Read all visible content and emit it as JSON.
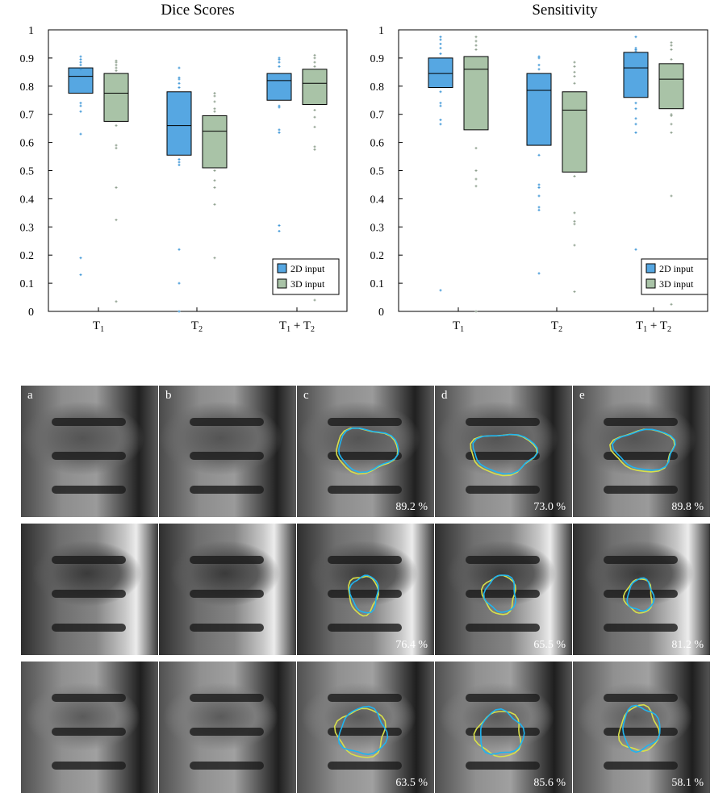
{
  "chart_data": [
    {
      "type": "box",
      "title": "Dice Scores",
      "categories": [
        "T1",
        "T2",
        "T1 + T2"
      ],
      "ylim": [
        0,
        1
      ],
      "yticks": [
        "0",
        "0.1",
        "0.2",
        "0.3",
        "0.4",
        "0.5",
        "0.6",
        "0.7",
        "0.8",
        "0.9",
        "1"
      ],
      "legend_position": "bottom-right",
      "series": [
        {
          "name": "2D input",
          "color": "#56a7e2",
          "boxes": [
            {
              "q1": 0.775,
              "median": 0.835,
              "q3": 0.865,
              "outliers": [
                0.905,
                0.895,
                0.885,
                0.875,
                0.86,
                0.74,
                0.73,
                0.71,
                0.63,
                0.19,
                0.13
              ]
            },
            {
              "q1": 0.555,
              "median": 0.66,
              "q3": 0.78,
              "outliers": [
                0.865,
                0.83,
                0.825,
                0.81,
                0.795,
                0.54,
                0.53,
                0.52,
                0.22,
                0.1,
                0.0
              ]
            },
            {
              "q1": 0.75,
              "median": 0.82,
              "q3": 0.845,
              "outliers": [
                0.9,
                0.895,
                0.885,
                0.87,
                0.73,
                0.725,
                0.645,
                0.635,
                0.305,
                0.285
              ]
            }
          ]
        },
        {
          "name": "3D input",
          "color": "#a9c3a7",
          "boxes": [
            {
              "q1": 0.675,
              "median": 0.775,
              "q3": 0.845,
              "outliers": [
                0.89,
                0.885,
                0.875,
                0.865,
                0.855,
                0.66,
                0.59,
                0.58,
                0.44,
                0.325,
                0.035
              ]
            },
            {
              "q1": 0.51,
              "median": 0.64,
              "q3": 0.695,
              "outliers": [
                0.775,
                0.765,
                0.745,
                0.72,
                0.71,
                0.5,
                0.465,
                0.44,
                0.38,
                0.19
              ]
            },
            {
              "q1": 0.735,
              "median": 0.81,
              "q3": 0.86,
              "outliers": [
                0.91,
                0.9,
                0.885,
                0.87,
                0.715,
                0.69,
                0.655,
                0.585,
                0.575,
                0.04
              ]
            }
          ]
        }
      ]
    },
    {
      "type": "box",
      "title": "Sensitivity",
      "categories": [
        "T1",
        "T2",
        "T1 + T2"
      ],
      "ylim": [
        0,
        1
      ],
      "yticks": [
        "0",
        "0.1",
        "0.2",
        "0.3",
        "0.4",
        "0.5",
        "0.6",
        "0.7",
        "0.8",
        "0.9",
        "1"
      ],
      "legend_position": "bottom-right",
      "series": [
        {
          "name": "2D input",
          "color": "#56a7e2",
          "boxes": [
            {
              "q1": 0.795,
              "median": 0.845,
              "q3": 0.9,
              "outliers": [
                0.975,
                0.965,
                0.95,
                0.935,
                0.915,
                0.78,
                0.74,
                0.73,
                0.68,
                0.665,
                0.075
              ]
            },
            {
              "q1": 0.59,
              "median": 0.785,
              "q3": 0.845,
              "outliers": [
                0.905,
                0.9,
                0.875,
                0.86,
                0.555,
                0.45,
                0.44,
                0.41,
                0.37,
                0.36,
                0.135
              ]
            },
            {
              "q1": 0.76,
              "median": 0.865,
              "q3": 0.92,
              "outliers": [
                0.975,
                0.935,
                0.93,
                0.925,
                0.74,
                0.72,
                0.685,
                0.665,
                0.635,
                0.22
              ]
            }
          ]
        },
        {
          "name": "3D input",
          "color": "#a9c3a7",
          "boxes": [
            {
              "q1": 0.645,
              "median": 0.86,
              "q3": 0.905,
              "outliers": [
                0.975,
                0.96,
                0.945,
                0.93,
                0.58,
                0.5,
                0.47,
                0.445,
                0.0
              ]
            },
            {
              "q1": 0.495,
              "median": 0.715,
              "q3": 0.78,
              "outliers": [
                0.885,
                0.87,
                0.85,
                0.835,
                0.81,
                0.48,
                0.35,
                0.32,
                0.31,
                0.235,
                0.07
              ]
            },
            {
              "q1": 0.72,
              "median": 0.825,
              "q3": 0.88,
              "outliers": [
                0.955,
                0.945,
                0.93,
                0.895,
                0.7,
                0.695,
                0.665,
                0.635,
                0.41,
                0.025
              ]
            }
          ]
        }
      ]
    }
  ],
  "image_grid": {
    "column_labels": [
      "a",
      "b",
      "c",
      "d",
      "e"
    ],
    "rows": [
      {
        "scores": [
          "89.2 %",
          "73.0 %",
          "89.8 %"
        ]
      },
      {
        "scores": [
          "76.4 %",
          "65.5 %",
          "81.2 %"
        ]
      },
      {
        "scores": [
          "63.5 %",
          "85.6 %",
          "58.1 %"
        ]
      }
    ],
    "colors": {
      "blue_contour": "#1fb4f0",
      "yellow_contour": "#d8e04a"
    }
  }
}
